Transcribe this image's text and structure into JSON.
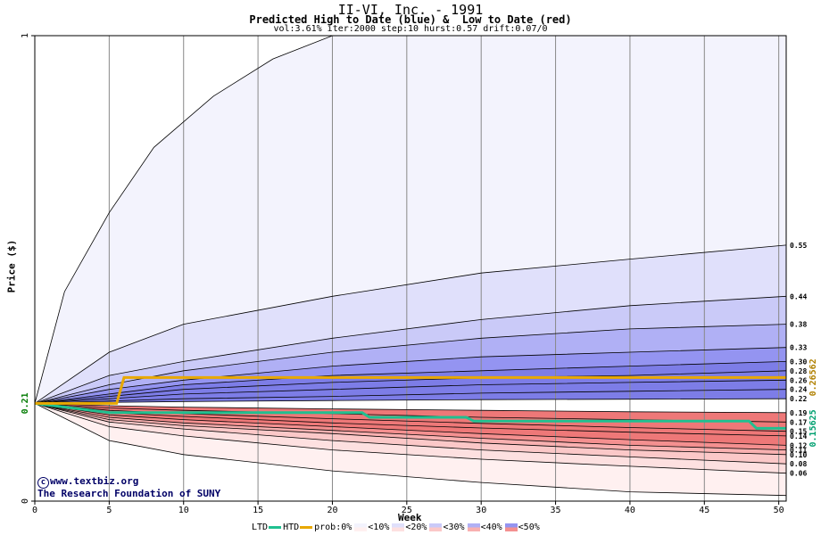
{
  "title": "II-VI, Inc. - 1991",
  "subtitle": "Predicted High to Date (blue) &  Low to Date (red)",
  "params": "vol:3.61% iter:2000 step:10 hurst:0.57 drift:0.07/0",
  "credit": {
    "line1": "www.textbiz.org",
    "line2": "The Research Foundation of SUNY"
  },
  "legend": {
    "ltd": "LTD",
    "htd": "HTD",
    "prob": "prob:0%",
    "bins": [
      "<10%",
      "<20%",
      "<30%",
      "<40%",
      "<50%"
    ]
  },
  "colors": {
    "htd_line": "#e8a800",
    "ltd_line": "#20c090",
    "high_bands": [
      "#f3f3fd",
      "#e0e0fb",
      "#cacaf8",
      "#b0b0f5",
      "#9494f1",
      "#7d7de7"
    ],
    "low_bands": [
      "#fff0f0",
      "#fde0e0",
      "#fbc8c8",
      "#f8b0b0",
      "#f49090",
      "#ee7878"
    ]
  },
  "chart_data": {
    "type": "area",
    "title": "II-VI, Inc. - 1991",
    "xlabel": "Week",
    "ylabel": "Price ($)",
    "xlim": [
      0,
      50.5
    ],
    "ylim": [
      0,
      1
    ],
    "x_ticks": [
      0,
      5,
      10,
      15,
      20,
      25,
      30,
      35,
      40,
      45,
      50
    ],
    "y_ticks": [
      0,
      1
    ],
    "grid": true,
    "start_price": 0.21,
    "high_percentile_levels_at_end": [
      "0.55",
      "0.44",
      "0.38",
      "0.33",
      "0.30",
      "0.28",
      "0.26",
      "0.24",
      "0.22"
    ],
    "low_percentile_levels_at_end": [
      "0.19",
      "0.17",
      "0.15",
      "0.14",
      "0.12",
      "0.11",
      "0.10",
      "0.08",
      "0.06"
    ],
    "htd_final_marker": "0.26562",
    "ltd_final_marker": "0.15625",
    "start_label": "0.21",
    "high_curves": [
      {
        "x": [
          0,
          2,
          5,
          8,
          12,
          16,
          20,
          21,
          50.5
        ],
        "y": [
          0.21,
          0.45,
          0.62,
          0.76,
          0.87,
          0.95,
          1.0,
          1.0,
          1.0
        ]
      },
      {
        "x": [
          0,
          5,
          10,
          20,
          30,
          40,
          50.5
        ],
        "y": [
          0.21,
          0.32,
          0.38,
          0.44,
          0.49,
          0.52,
          0.55
        ]
      },
      {
        "x": [
          0,
          5,
          10,
          20,
          30,
          40,
          50.5
        ],
        "y": [
          0.21,
          0.27,
          0.3,
          0.35,
          0.39,
          0.42,
          0.44
        ]
      },
      {
        "x": [
          0,
          5,
          10,
          20,
          30,
          40,
          50.5
        ],
        "y": [
          0.21,
          0.25,
          0.28,
          0.32,
          0.35,
          0.37,
          0.38
        ]
      },
      {
        "x": [
          0,
          5,
          10,
          20,
          30,
          40,
          50.5
        ],
        "y": [
          0.21,
          0.24,
          0.26,
          0.29,
          0.31,
          0.32,
          0.33
        ]
      },
      {
        "x": [
          0,
          5,
          10,
          20,
          30,
          40,
          50.5
        ],
        "y": [
          0.21,
          0.23,
          0.25,
          0.27,
          0.28,
          0.29,
          0.3
        ]
      },
      {
        "x": [
          0,
          5,
          10,
          20,
          30,
          40,
          50.5
        ],
        "y": [
          0.21,
          0.225,
          0.24,
          0.255,
          0.265,
          0.27,
          0.28
        ]
      },
      {
        "x": [
          0,
          5,
          10,
          20,
          30,
          40,
          50.5
        ],
        "y": [
          0.21,
          0.22,
          0.23,
          0.24,
          0.25,
          0.255,
          0.26
        ]
      },
      {
        "x": [
          0,
          5,
          10,
          20,
          30,
          40,
          50.5
        ],
        "y": [
          0.21,
          0.215,
          0.22,
          0.225,
          0.232,
          0.236,
          0.24
        ]
      },
      {
        "x": [
          0,
          5,
          10,
          20,
          30,
          40,
          50.5
        ],
        "y": [
          0.21,
          0.212,
          0.214,
          0.216,
          0.218,
          0.219,
          0.22
        ]
      }
    ],
    "low_curves": [
      {
        "x": [
          0,
          5,
          10,
          20,
          30,
          40,
          50.5
        ],
        "y": [
          0.21,
          0.205,
          0.202,
          0.198,
          0.195,
          0.192,
          0.19
        ]
      },
      {
        "x": [
          0,
          5,
          10,
          20,
          30,
          40,
          50.5
        ],
        "y": [
          0.21,
          0.2,
          0.195,
          0.188,
          0.18,
          0.175,
          0.17
        ]
      },
      {
        "x": [
          0,
          5,
          10,
          20,
          30,
          40,
          50.5
        ],
        "y": [
          0.21,
          0.195,
          0.188,
          0.177,
          0.167,
          0.158,
          0.15
        ]
      },
      {
        "x": [
          0,
          5,
          10,
          20,
          30,
          40,
          50.5
        ],
        "y": [
          0.21,
          0.19,
          0.182,
          0.168,
          0.157,
          0.148,
          0.14
        ]
      },
      {
        "x": [
          0,
          5,
          10,
          20,
          30,
          40,
          50.5
        ],
        "y": [
          0.21,
          0.185,
          0.175,
          0.16,
          0.145,
          0.132,
          0.12
        ]
      },
      {
        "x": [
          0,
          5,
          10,
          20,
          30,
          40,
          50.5
        ],
        "y": [
          0.21,
          0.18,
          0.168,
          0.152,
          0.135,
          0.12,
          0.11
        ]
      },
      {
        "x": [
          0,
          5,
          10,
          20,
          30,
          40,
          50.5
        ],
        "y": [
          0.21,
          0.175,
          0.162,
          0.145,
          0.125,
          0.11,
          0.1
        ]
      },
      {
        "x": [
          0,
          5,
          10,
          20,
          30,
          40,
          50.5
        ],
        "y": [
          0.21,
          0.17,
          0.155,
          0.13,
          0.11,
          0.095,
          0.08
        ]
      },
      {
        "x": [
          0,
          5,
          10,
          20,
          30,
          40,
          50.5
        ],
        "y": [
          0.21,
          0.16,
          0.14,
          0.11,
          0.09,
          0.075,
          0.06
        ]
      },
      {
        "x": [
          0,
          5,
          10,
          20,
          30,
          40,
          50.5
        ],
        "y": [
          0.21,
          0.13,
          0.1,
          0.065,
          0.04,
          0.02,
          0.012
        ]
      }
    ],
    "htd_series": {
      "x": [
        0,
        5,
        5.5,
        6,
        50.5
      ],
      "y": [
        0.21,
        0.21,
        0.21,
        0.2656,
        0.2656
      ]
    },
    "ltd_series": {
      "x": [
        0,
        5,
        22,
        22.5,
        29,
        29.5,
        48,
        48.5,
        50.5
      ],
      "y": [
        0.21,
        0.19,
        0.19,
        0.18,
        0.18,
        0.172,
        0.172,
        0.1563,
        0.1563
      ]
    }
  }
}
